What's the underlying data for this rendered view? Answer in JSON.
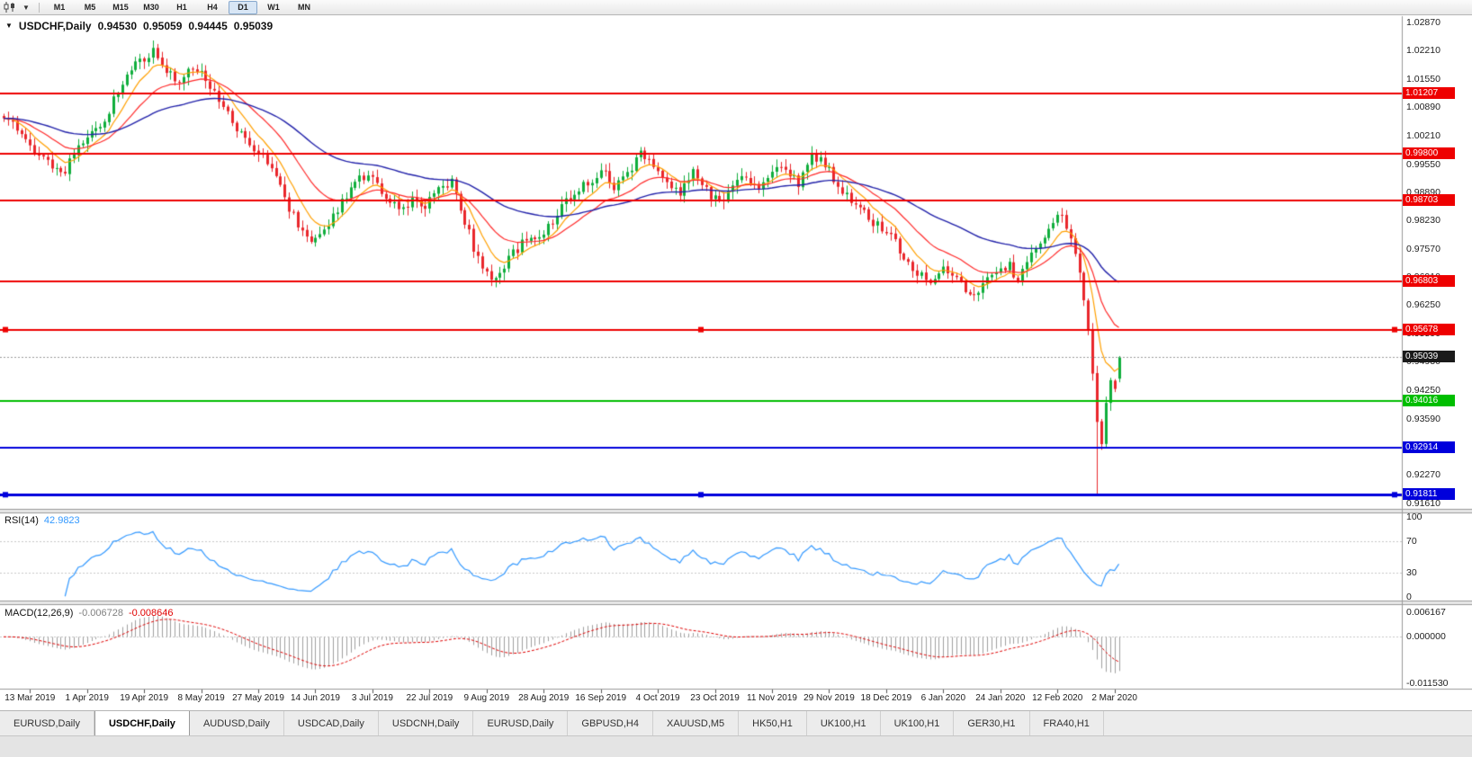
{
  "toolbar": {
    "timeframes": [
      "M1",
      "M5",
      "M15",
      "M30",
      "H1",
      "H4",
      "D1",
      "W1",
      "MN"
    ],
    "active_timeframe": "D1"
  },
  "symbol_header": {
    "marker": "▼",
    "title": "USDCHF,Daily",
    "open": "0.94530",
    "high": "0.95059",
    "low": "0.94445",
    "close": "0.95039"
  },
  "price_axis": {
    "ticks": [
      "1.02870",
      "1.02210",
      "1.01550",
      "1.00890",
      "1.00210",
      "0.99550",
      "0.98890",
      "0.98230",
      "0.97570",
      "0.96910",
      "0.96250",
      "0.95590",
      "0.94930",
      "0.94250",
      "0.93590",
      "0.92930",
      "0.92270",
      "0.91610"
    ]
  },
  "rsi": {
    "label": "RSI(14)",
    "value": "42.9823",
    "ticks": [
      "100",
      "70",
      "30",
      "0"
    ],
    "guide_levels": [
      70,
      30
    ]
  },
  "macd": {
    "label": "MACD(12,26,9)",
    "main_value": "-0.006728",
    "signal_value": "-0.008646",
    "ticks": [
      "0.006167",
      "0.000000",
      "-0.011530"
    ]
  },
  "current_price": {
    "label": "0.95039",
    "value": 0.95039
  },
  "date_axis": [
    "13 Mar 2019",
    "1 Apr 2019",
    "19 Apr 2019",
    "8 May 2019",
    "27 May 2019",
    "14 Jun 2019",
    "3 Jul 2019",
    "22 Jul 2019",
    "9 Aug 2019",
    "28 Aug 2019",
    "16 Sep 2019",
    "4 Oct 2019",
    "23 Oct 2019",
    "11 Nov 2019",
    "29 Nov 2019",
    "18 Dec 2019",
    "6 Jan 2020",
    "24 Jan 2020",
    "12 Feb 2020",
    "2 Mar 2020"
  ],
  "tabs": {
    "items": [
      "EURUSD,Daily",
      "USDCHF,Daily",
      "AUDUSD,Daily",
      "USDCAD,Daily",
      "USDCNH,Daily",
      "EURUSD,Daily",
      "GBPUSD,H4",
      "XAUUSD,M5",
      "HK50,H1",
      "UK100,H1",
      "UK100,H1",
      "GER30,H1",
      "FRA40,H1"
    ],
    "active_index": 1
  },
  "colors": {
    "bull": "#0FAE3C",
    "bear": "#E9262B",
    "ma_fast": "#FFA000",
    "ma_mid": "#FF2A2A",
    "ma_slow": "#2222AA",
    "rsi_line": "#3399FF",
    "rsi_guide": "#c8c8c8",
    "macd_hist": "#A0A0A0",
    "macd_signal": "#E00000",
    "price_tag_bg": "#1a1a1a",
    "current_price_line": "#9a9a9a"
  },
  "chart_data": {
    "type": "candlestick",
    "symbol": "USDCHF",
    "timeframe": "Daily",
    "last_candle_ohlc": {
      "open": 0.9453,
      "high": 0.95059,
      "low": 0.94445,
      "close": 0.95039
    },
    "visible_price_range": [
      0.9161,
      1.0287
    ],
    "visible_date_range": [
      "13 Mar 2019",
      "2 Mar 2020"
    ],
    "path_anchors": [
      [
        0,
        1.0068
      ],
      [
        4,
        1.0025
      ],
      [
        8,
        0.9975
      ],
      [
        12,
        0.9938
      ],
      [
        14,
        0.9942
      ],
      [
        17,
        0.999
      ],
      [
        20,
        1.0035
      ],
      [
        23,
        1.006
      ],
      [
        26,
        1.0125
      ],
      [
        29,
        1.018
      ],
      [
        32,
        1.0205
      ],
      [
        34,
        1.0222
      ],
      [
        36,
        1.0195
      ],
      [
        38,
        1.0165
      ],
      [
        40,
        1.015
      ],
      [
        43,
        1.018
      ],
      [
        46,
        1.0158
      ],
      [
        49,
        1.0105
      ],
      [
        52,
        1.0055
      ],
      [
        55,
        1.001
      ],
      [
        58,
        0.9985
      ],
      [
        61,
        0.994
      ],
      [
        64,
        0.9875
      ],
      [
        67,
        0.9815
      ],
      [
        70,
        0.9772
      ],
      [
        72,
        0.979
      ],
      [
        75,
        0.9835
      ],
      [
        78,
        0.988
      ],
      [
        81,
        0.9925
      ],
      [
        84,
        0.9922
      ],
      [
        87,
        0.9878
      ],
      [
        90,
        0.9852
      ],
      [
        93,
        0.9868
      ],
      [
        96,
        0.986
      ],
      [
        99,
        0.9898
      ],
      [
        102,
        0.9916
      ],
      [
        104,
        0.9855
      ],
      [
        107,
        0.976
      ],
      [
        110,
        0.97
      ],
      [
        112,
        0.9682
      ],
      [
        115,
        0.9738
      ],
      [
        118,
        0.9768
      ],
      [
        121,
        0.9788
      ],
      [
        124,
        0.9808
      ],
      [
        127,
        0.9855
      ],
      [
        130,
        0.9888
      ],
      [
        133,
        0.9912
      ],
      [
        136,
        0.994
      ],
      [
        139,
        0.9905
      ],
      [
        142,
        0.9928
      ],
      [
        145,
        0.998
      ],
      [
        148,
        0.9958
      ],
      [
        151,
        0.9912
      ],
      [
        154,
        0.989
      ],
      [
        157,
        0.9935
      ],
      [
        160,
        0.9892
      ],
      [
        163,
        0.9862
      ],
      [
        166,
        0.9902
      ],
      [
        169,
        0.9928
      ],
      [
        172,
        0.9902
      ],
      [
        175,
        0.9932
      ],
      [
        178,
        0.9952
      ],
      [
        181,
        0.9908
      ],
      [
        184,
        0.9972
      ],
      [
        187,
        0.9958
      ],
      [
        190,
        0.9902
      ],
      [
        193,
        0.9872
      ],
      [
        196,
        0.984
      ],
      [
        199,
        0.9812
      ],
      [
        202,
        0.9786
      ],
      [
        205,
        0.9742
      ],
      [
        208,
        0.97
      ],
      [
        211,
        0.9678
      ],
      [
        214,
        0.9716
      ],
      [
        217,
        0.9684
      ],
      [
        220,
        0.965
      ],
      [
        223,
        0.9672
      ],
      [
        226,
        0.9702
      ],
      [
        229,
        0.9716
      ],
      [
        231,
        0.9682
      ],
      [
        233,
        0.9722
      ],
      [
        235,
        0.9762
      ],
      [
        237,
        0.9788
      ],
      [
        239,
        0.9822
      ],
      [
        241,
        0.9838
      ],
      [
        243,
        0.9792
      ],
      [
        245,
        0.97
      ],
      [
        246,
        0.964
      ],
      [
        247,
        0.9572
      ],
      [
        248,
        0.947
      ],
      [
        249,
        0.935
      ],
      [
        250,
        0.93
      ],
      [
        251,
        0.9398
      ],
      [
        252,
        0.9448
      ],
      [
        253,
        0.944
      ],
      [
        254,
        0.9504
      ]
    ],
    "overrides": {
      "wick_low": {
        "index": 249,
        "low": 0.9182
      },
      "last_candle": {
        "open": 0.9453,
        "high": 0.95059,
        "low": 0.94445,
        "close": 0.95039
      }
    },
    "moving_averages": [
      {
        "period": 8,
        "color": "#FFA000"
      },
      {
        "period": 20,
        "color": "#FF2A2A"
      },
      {
        "period": 55,
        "color": "#2222AA"
      }
    ],
    "levels": [
      {
        "price": 1.01207,
        "label": "1.01207",
        "color": "#EE0000",
        "width": 2,
        "selected": false
      },
      {
        "price": 0.998,
        "label": "0.99800",
        "color": "#EE0000",
        "width": 2,
        "selected": false
      },
      {
        "price": 0.98703,
        "label": "0.98703",
        "color": "#EE0000",
        "width": 2,
        "selected": false
      },
      {
        "price": 0.96803,
        "label": "0.96803",
        "color": "#EE0000",
        "width": 2,
        "selected": false
      },
      {
        "price": 0.95678,
        "label": "0.95678",
        "color": "#EE0000",
        "width": 2,
        "selected": true
      },
      {
        "price": 0.94016,
        "label": "0.94016",
        "color": "#00BE00",
        "width": 2,
        "selected": false
      },
      {
        "price": 0.92914,
        "label": "0.92914",
        "color": "#0000DC",
        "width": 2,
        "selected": false
      },
      {
        "price": 0.91811,
        "label": "0.91811",
        "color": "#0000DC",
        "width": 3,
        "selected": true
      }
    ],
    "indicators": [
      {
        "name": "RSI",
        "period": 14,
        "current": 42.9823,
        "scale": [
          0,
          100
        ],
        "guides": [
          70,
          30
        ]
      },
      {
        "name": "MACD",
        "fast": 12,
        "slow": 26,
        "signal": 9,
        "current_main": -0.006728,
        "current_signal": -0.008646
      }
    ]
  }
}
